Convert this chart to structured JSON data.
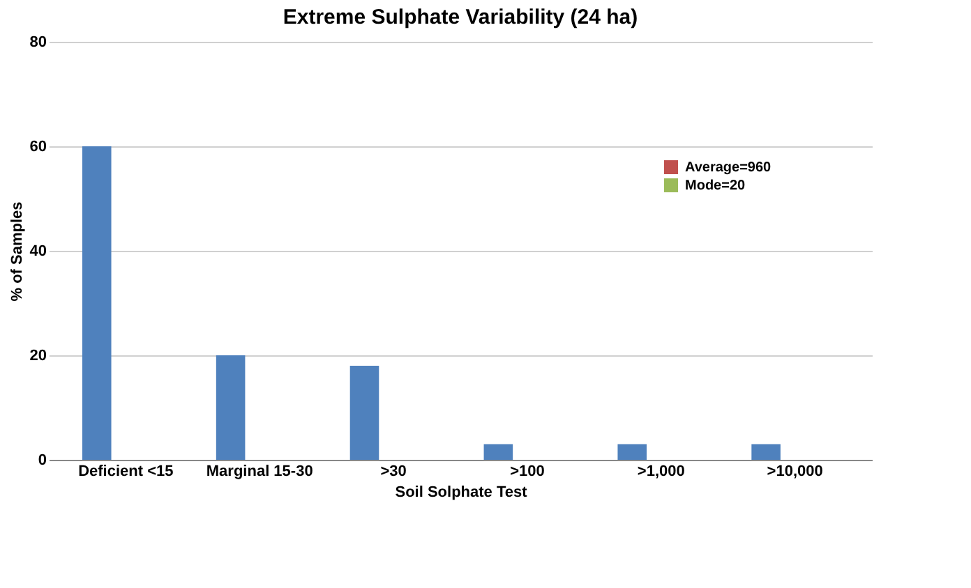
{
  "chart_data": {
    "type": "bar",
    "title": "Extreme Sulphate Variability (24 ha)",
    "xlabel": "Soil Solphate Test",
    "ylabel": "% of Samples",
    "categories": [
      "Deficient <15",
      "Marginal 15-30",
      ">30",
      ">100",
      ">1,000",
      ">10,000"
    ],
    "series": [
      {
        "color": "#4f81bd",
        "values": [
          60,
          20,
          18,
          3,
          3,
          3
        ]
      },
      {
        "name": "Average=960",
        "color": "#c0504d",
        "values": [
          null,
          null,
          null,
          null,
          null,
          null
        ]
      },
      {
        "name": "Mode=20",
        "color": "#9bbb59",
        "values": [
          null,
          null,
          null,
          null,
          null,
          null
        ]
      }
    ],
    "ylim": [
      0,
      80
    ],
    "yticks": [
      0,
      20,
      40,
      60,
      80
    ],
    "grid": "y",
    "legend": "right"
  }
}
